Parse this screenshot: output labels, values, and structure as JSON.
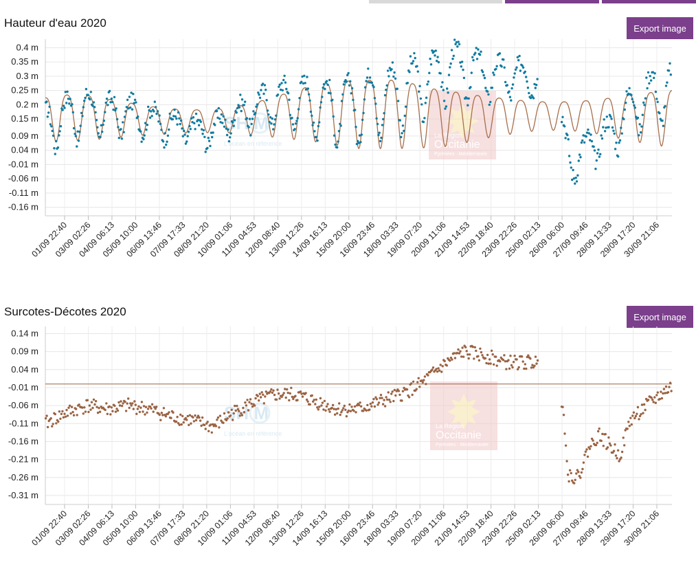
{
  "colors": {
    "accent": "#7b3f8c",
    "tab_inactive": "#d9d9d9",
    "series_points_1": "#0e7ba0",
    "series_line_1": "#a66e4a",
    "series_points_2": "#9a6343",
    "zero_line": "#9a6343",
    "watermark_region": "#f2c8c8"
  },
  "top_tabs": [
    "",
    "",
    ""
  ],
  "x_ticks": [
    "01/09 22:40",
    "03/09 02:26",
    "04/09 06:13",
    "05/09 10:00",
    "06/09 13:46",
    "07/09 17:33",
    "08/09 21:20",
    "10/09 01:06",
    "11/09 04:53",
    "12/09 08:40",
    "13/09 12:26",
    "14/09 16:13",
    "15/09 20:00",
    "16/09 23:46",
    "18/09 03:33",
    "19/09 07:20",
    "20/09 11:06",
    "21/09 14:53",
    "22/09 18:40",
    "23/09 22:26",
    "25/09 02:13",
    "26/09 06:00",
    "27/09 09:46",
    "28/09 13:33",
    "29/09 17:20",
    "30/09 21:06"
  ],
  "watermarks": {
    "shom_text": "SH  M",
    "shom_sub": "L'océan en référence",
    "region_line1": "La Région",
    "region_line2": "Occitanie",
    "region_line3": "Pyrénées · Méditerranée"
  },
  "chart_data": [
    {
      "type": "scatter",
      "title": "Hauteur d'eau 2020",
      "export_label": "Export image",
      "ylim": [
        -0.19,
        0.43
      ],
      "y_ticks": [
        "0.4 m",
        "0.35 m",
        "0.3 m",
        "0.25 m",
        "0.2 m",
        "0.15 m",
        "0.09 m",
        "0.04 m",
        "-0.01 m",
        "-0.06 m",
        "-0.11 m",
        "-0.16 m"
      ],
      "y_tick_values": [
        0.4,
        0.35,
        0.3,
        0.25,
        0.2,
        0.15,
        0.09,
        0.04,
        -0.01,
        -0.06,
        -0.11,
        -0.16
      ],
      "x_range_days": [
        1.0,
        31.0
      ],
      "grid": true,
      "series": [
        {
          "kind": "line",
          "description": "predicted tide (semi-diurnal oscillation)",
          "x_days": [
            1.0,
            1.9,
            2.9,
            3.9,
            4.9,
            5.9,
            6.9,
            7.9,
            8.9,
            9.9,
            10.9,
            11.9,
            12.9,
            13.9,
            14.9,
            15.9,
            16.9,
            17.9,
            18.9,
            19.9,
            20.9,
            21.9,
            22.9,
            23.9,
            24.9,
            25.9,
            26.9,
            27.9,
            28.9,
            29.9,
            30.9
          ],
          "amplitude_m": [
            0.08,
            0.08,
            0.08,
            0.07,
            0.06,
            0.05,
            0.045,
            0.04,
            0.04,
            0.045,
            0.055,
            0.07,
            0.085,
            0.1,
            0.11,
            0.12,
            0.12,
            0.12,
            0.11,
            0.1,
            0.09,
            0.075,
            0.065,
            0.055,
            0.05,
            0.05,
            0.055,
            0.065,
            0.08,
            0.09,
            0.1
          ],
          "mean_m": [
            0.16,
            0.17,
            0.17,
            0.165,
            0.16,
            0.155,
            0.15,
            0.15,
            0.15,
            0.155,
            0.16,
            0.17,
            0.18,
            0.19,
            0.19,
            0.19,
            0.19,
            0.19,
            0.18,
            0.17,
            0.17,
            0.17,
            0.17,
            0.17,
            0.17,
            0.17,
            0.17,
            0.17,
            0.17,
            0.17,
            0.17
          ]
        },
        {
          "kind": "points",
          "description": "observed water height",
          "gaps_days": [
            [
              24.6,
              25.7
            ]
          ],
          "offset_m": [
            -0.11,
            -0.08,
            -0.06,
            -0.07,
            -0.06,
            -0.07,
            -0.09,
            -0.1,
            -0.12,
            -0.08,
            -0.05,
            -0.03,
            -0.03,
            -0.05,
            -0.07,
            -0.07,
            -0.05,
            -0.03,
            0.0,
            0.05,
            0.09,
            0.08,
            0.06,
            0.06,
            0.06,
            0.06,
            -0.25,
            -0.18,
            -0.14,
            -0.05,
            0.0,
            0.01
          ]
        }
      ]
    },
    {
      "type": "scatter",
      "title": "Surcotes-Décotes 2020",
      "export_label": "Export image",
      "ylim": [
        -0.335,
        0.16
      ],
      "y_ticks": [
        "0.14 m",
        "0.09 m",
        "0.04 m",
        "-0.01 m",
        "-0.06 m",
        "-0.11 m",
        "-0.16 m",
        "-0.21 m",
        "-0.26 m",
        "-0.31 m"
      ],
      "y_tick_values": [
        0.14,
        0.09,
        0.04,
        -0.01,
        -0.06,
        -0.11,
        -0.16,
        -0.21,
        -0.26,
        -0.31
      ],
      "x_range_days": [
        1.0,
        31.0
      ],
      "grid": true,
      "zero_line": 0.0,
      "series": [
        {
          "kind": "points",
          "description": "surge residual",
          "gaps_days": [
            [
              24.6,
              25.7
            ]
          ],
          "x_days": [
            1.0,
            2.0,
            3.0,
            4.0,
            5.0,
            6.0,
            7.0,
            8.0,
            9.0,
            10.0,
            11.0,
            12.0,
            13.0,
            14.0,
            15.0,
            16.0,
            17.0,
            18.0,
            19.0,
            20.0,
            21.0,
            22.0,
            23.0,
            24.0,
            24.5,
            25.8,
            26.0,
            26.5,
            27.0,
            27.5,
            28.0,
            28.5,
            29.0,
            30.0,
            30.9
          ],
          "values": [
            -0.11,
            -0.08,
            -0.06,
            -0.07,
            -0.06,
            -0.07,
            -0.09,
            -0.1,
            -0.12,
            -0.08,
            -0.05,
            -0.03,
            -0.03,
            -0.05,
            -0.07,
            -0.07,
            -0.05,
            -0.03,
            0.0,
            0.05,
            0.09,
            0.08,
            0.06,
            0.06,
            0.06,
            -0.05,
            -0.25,
            -0.26,
            -0.18,
            -0.14,
            -0.17,
            -0.2,
            -0.1,
            -0.05,
            -0.01
          ]
        }
      ]
    }
  ]
}
